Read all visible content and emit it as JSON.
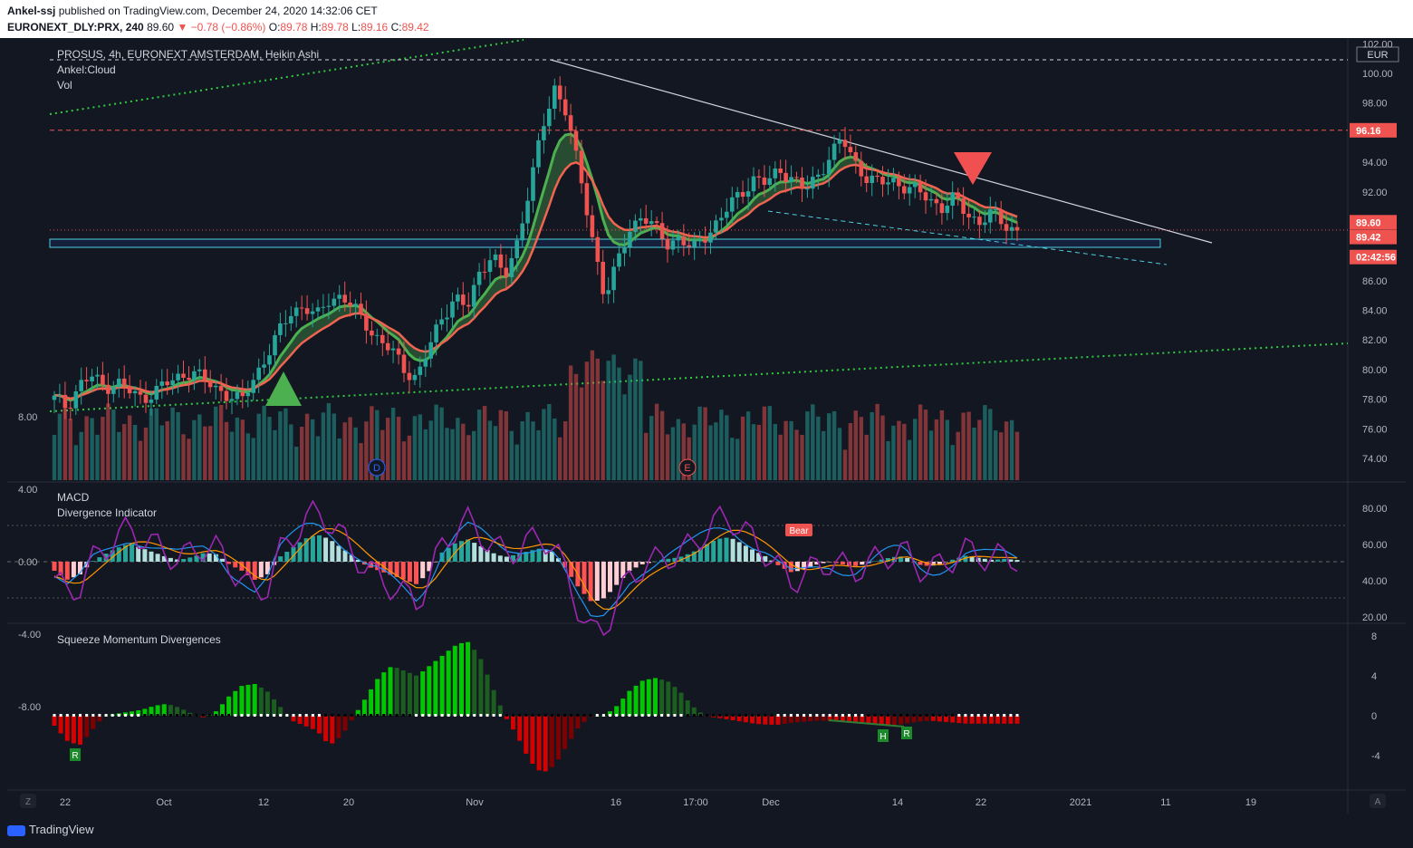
{
  "header": {
    "publisher": "Ankel-ssj",
    "published_text": "published on TradingView.com, December 24, 2020 14:32:06 CET",
    "symbol": "EURONEXT_DLY:PRX, 240",
    "last": "89.60",
    "change": "−0.78 (−0.86%)",
    "o": "89.78",
    "h": "89.78",
    "l": "89.16",
    "c": "89.42"
  },
  "legend": {
    "title": "PROSUS, 4h, EURONEXT AMSTERDAM, Heikin Ashi",
    "cloud": "Ankel:Cloud",
    "vol": "Vol",
    "currency": "EUR"
  },
  "price_labels": {
    "level_red": "96.16",
    "last_up": "89.60",
    "last_close": "89.42",
    "countdown": "02:42:56"
  },
  "panes": {
    "macd_title": "MACD",
    "div_title": "Divergence Indicator",
    "bear_label": "Bear",
    "sqz_title": "Squeeze Momentum Divergences",
    "sqz_labels": [
      "R",
      "H",
      "R"
    ],
    "event_d": "D",
    "event_e": "E"
  },
  "axes": {
    "price_ticks": [
      "102.00",
      "100.00",
      "98.00",
      "94.00",
      "92.00",
      "86.00",
      "84.00",
      "82.00",
      "80.00",
      "78.00",
      "76.00",
      "74.00"
    ],
    "macd_ticks": [
      "8.00",
      "4.00",
      "0.00",
      "-4.00",
      "-8.00"
    ],
    "rsi_ticks": [
      "80.00",
      "60.00",
      "40.00",
      "20.00"
    ],
    "sqz_ticks": [
      "8",
      "4",
      "0",
      "-4"
    ],
    "time_ticks": [
      "22",
      "Oct",
      "12",
      "20",
      "Nov",
      "16",
      "17:00",
      "Dec",
      "14",
      "22",
      "2021",
      "11",
      "19"
    ],
    "z_btn": "Z",
    "a_btn": "A"
  },
  "footer": {
    "brand": "TradingView"
  },
  "colors": {
    "up": "#26a69a",
    "down": "#ef5350",
    "cloud_green": "#4caf50",
    "cloud_red": "#f06450",
    "bg": "#131722"
  },
  "chart_data": [
    {
      "type": "candlestick",
      "title": "PROSUS, 4h, EURONEXT AMSTERDAM, Heikin Ashi",
      "ylim": [
        73,
        102.5
      ],
      "x": [
        "22",
        "Oct",
        "12",
        "20",
        "Nov",
        "16",
        "17:00",
        "Dec",
        "14",
        "22",
        "2021",
        "11",
        "19"
      ],
      "levels": {
        "resistance": 96.16,
        "support_zone": [
          88.5,
          89.1
        ],
        "last": 89.42
      },
      "close_path": [
        78.0,
        77.5,
        79.0,
        79.5,
        78.8,
        79.2,
        78.5,
        78.0,
        78.6,
        79.0,
        79.5,
        80.0,
        79.2,
        78.7,
        78.3,
        77.8,
        79.5,
        81.0,
        82.5,
        84.0,
        84.3,
        83.5,
        84.8,
        85.0,
        84.0,
        83.0,
        82.0,
        81.2,
        80.0,
        79.5,
        81.5,
        83.5,
        85.0,
        84.0,
        86.5,
        88.0,
        86.0,
        88.5,
        92.5,
        96.0,
        99.0,
        97.5,
        93.0,
        89.0,
        85.0,
        87.0,
        89.5,
        90.5,
        89.5,
        88.5,
        89.0,
        88.0,
        89.0,
        90.0,
        91.0,
        92.0,
        93.0,
        92.5,
        93.5,
        93.0,
        92.0,
        93.0,
        94.5,
        95.5,
        94.0,
        93.0,
        92.5,
        92.8,
        92.4,
        92.0,
        91.5,
        91.0,
        91.5,
        90.5,
        90.0,
        90.5,
        89.8,
        89.4
      ]
    },
    {
      "type": "bar",
      "title": "MACD",
      "ylim": [
        -8,
        8
      ],
      "hist_path": [
        -1,
        -2,
        -1.5,
        0,
        0.8,
        1.5,
        2,
        1.5,
        1,
        0.5,
        0.2,
        0.5,
        1,
        0.8,
        -0.3,
        -1,
        -2,
        -1.5,
        0.5,
        1.5,
        2.5,
        3,
        2.5,
        1.5,
        0.5,
        -0.5,
        -1,
        -1.5,
        -2,
        -2.5,
        -1,
        1,
        2,
        2.5,
        1.8,
        1,
        0.5,
        0.8,
        1.2,
        1.5,
        1,
        -1,
        -3,
        -4.5,
        -4,
        -2.5,
        -1,
        -0.3,
        0,
        0.3,
        0.5,
        1,
        1.8,
        2.5,
        2.7,
        2,
        1.2,
        0.5,
        -0.5,
        -1.2,
        -0.8,
        -0.3,
        0,
        -0.3,
        -0.5,
        -0.2,
        0.2,
        0.5,
        0.6,
        -0.3,
        -0.5,
        -0.2,
        0.3,
        0.7,
        0.4,
        0.2,
        0.3,
        0.2
      ]
    },
    {
      "type": "bar",
      "title": "Squeeze Momentum Divergences",
      "ylim": [
        -6,
        9
      ],
      "hist_path": [
        -1,
        -2.5,
        -3,
        -1.5,
        0,
        0.2,
        0.4,
        0.6,
        1.0,
        1.2,
        0.8,
        0.2,
        -0.2,
        0.5,
        2,
        3,
        3.2,
        2.5,
        1,
        -0.5,
        -1,
        -1.5,
        -3,
        -2,
        0,
        2,
        4,
        5,
        4.5,
        4,
        5,
        6,
        7,
        7.5,
        6,
        3,
        0,
        -2,
        -4.5,
        -5.8,
        -5,
        -3,
        -1,
        0,
        0,
        1,
        2.5,
        3.5,
        3.8,
        3.5,
        2.5,
        1,
        0,
        -0.2,
        -0.4,
        -0.6,
        -0.8,
        -0.9,
        -0.9,
        -0.7,
        -0.6,
        -0.5,
        -0.5,
        -0.6,
        -0.7,
        -0.8,
        -0.9,
        -1.0,
        -0.8,
        -0.6,
        -0.5,
        -0.6,
        -0.7,
        -0.8,
        -0.8,
        -0.8,
        -0.8,
        -0.8
      ]
    }
  ]
}
